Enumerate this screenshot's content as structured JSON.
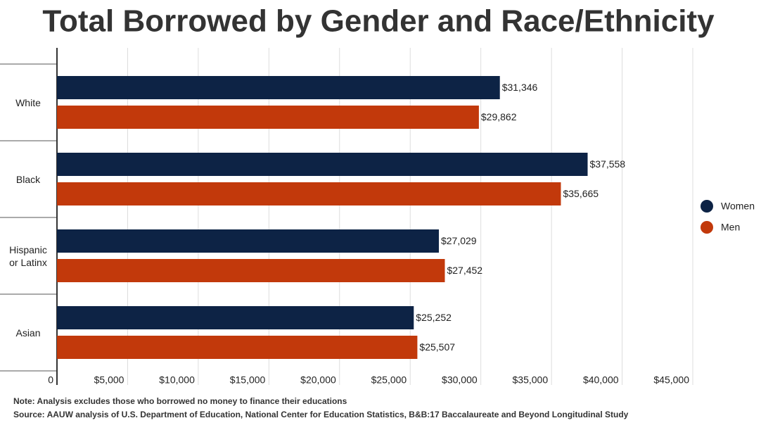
{
  "chart_data": {
    "type": "bar",
    "orientation": "horizontal",
    "title": "Total Borrowed by Gender and Race/Ethnicity",
    "categories": [
      "White",
      "Black",
      "Hispanic or Latinx",
      "Asian"
    ],
    "series": [
      {
        "name": "Women",
        "color": "#0d2345",
        "values": [
          31346,
          37558,
          27029,
          25252
        ],
        "value_labels": [
          "$31,346",
          "$37,558",
          "$27,029",
          "$25,252"
        ]
      },
      {
        "name": "Men",
        "color": "#c2390b",
        "values": [
          29862,
          35665,
          27452,
          25507
        ],
        "value_labels": [
          "$29,862",
          "$35,665",
          "$27,452",
          "$25,507"
        ]
      }
    ],
    "xlim": [
      0,
      45000
    ],
    "xticks": [
      0,
      {
        "value": 5000,
        "label": "$5,000"
      },
      {
        "value": 10000,
        "label": "$10,000"
      },
      {
        "value": 15000,
        "label": "$15,000"
      },
      {
        "value": 20000,
        "label": "$20,000"
      },
      {
        "value": 25000,
        "label": "$25,000"
      },
      {
        "value": 30000,
        "label": "$30,000"
      },
      {
        "value": 35000,
        "label": "$35,000"
      },
      {
        "value": 40000,
        "label": "$40,000"
      },
      {
        "value": 45000,
        "label": "$45,000"
      }
    ],
    "grid": true,
    "legend": "right",
    "notes": [
      "Note: Analysis excludes those who borrowed no money to finance their educations",
      "Source: AAUW analysis of U.S. Department of Education, National Center for Education Statistics, B&B:17 Baccalaureate and Beyond Longitudinal Study"
    ]
  }
}
